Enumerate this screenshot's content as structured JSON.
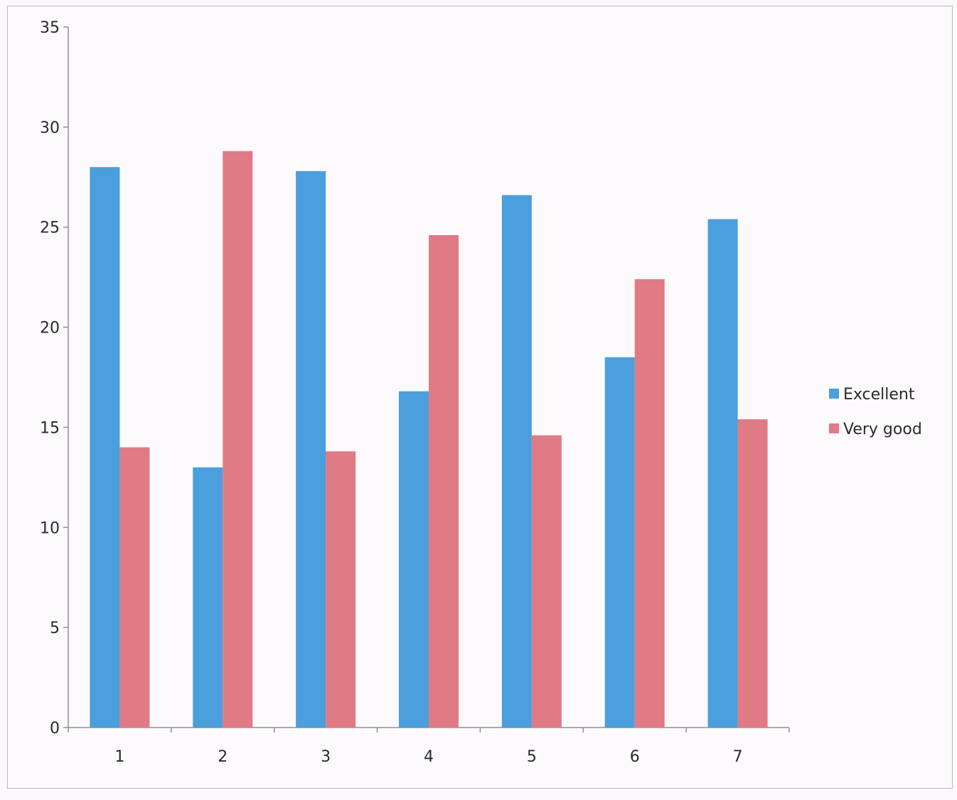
{
  "chart_data": {
    "type": "bar",
    "categories": [
      "1",
      "2",
      "3",
      "4",
      "5",
      "6",
      "7"
    ],
    "series": [
      {
        "name": "Excellent",
        "color": "#4a9fdc",
        "values": [
          28,
          13,
          27.8,
          16.8,
          26.6,
          18.5,
          25.4
        ]
      },
      {
        "name": "Very good",
        "color": "#e07a85",
        "values": [
          14,
          28.8,
          13.8,
          24.6,
          14.6,
          22.4,
          15.4
        ]
      }
    ],
    "y_ticks": [
      "0",
      "5",
      "10",
      "15",
      "20",
      "25",
      "30",
      "35"
    ],
    "ylim": [
      0,
      35
    ],
    "legend_position": "right",
    "grid": false
  }
}
